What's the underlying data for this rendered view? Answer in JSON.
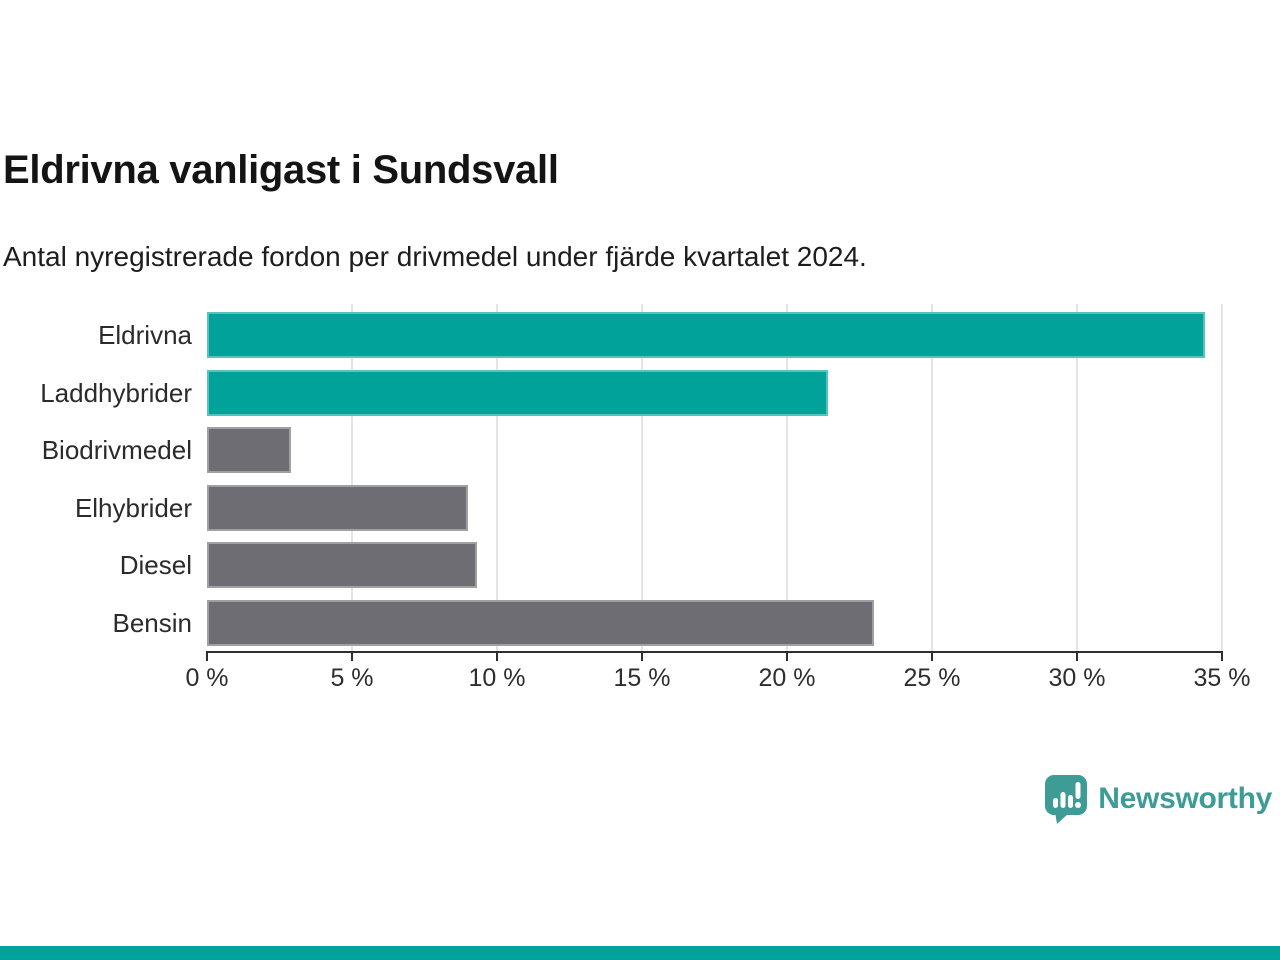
{
  "header": {
    "title": "Eldrivna vanligast i Sundsvall",
    "subtitle": "Antal nyregistrerade fordon per drivmedel under fjärde kvartalet 2024."
  },
  "chart_data": {
    "type": "bar",
    "orientation": "horizontal",
    "title": "Eldrivna vanligast i Sundsvall",
    "subtitle": "Antal nyregistrerade fordon per drivmedel under fjärde kvartalet 2024.",
    "categories": [
      "Eldrivna",
      "Laddhybrider",
      "Biodrivmedel",
      "Elhybrider",
      "Diesel",
      "Bensin"
    ],
    "values": [
      34.4,
      21.4,
      2.9,
      9.0,
      9.3,
      23.0
    ],
    "bar_colors": [
      "#00a29a",
      "#00a29a",
      "#6e6d73",
      "#6e6d73",
      "#6e6d73",
      "#6e6d73"
    ],
    "xlabel": "",
    "ylabel": "",
    "xlim": [
      0,
      35
    ],
    "x_ticks": [
      "0 %",
      "5 %",
      "10 %",
      "15 %",
      "20 %",
      "25 %",
      "30 %",
      "35 %"
    ],
    "x_tick_values": [
      0,
      5,
      10,
      15,
      20,
      25,
      30,
      35
    ],
    "grid": "vertical",
    "legend": "none",
    "colors": {
      "highlight": "#00a29a",
      "default": "#6e6d73",
      "gridline": "#e4e4e4",
      "axis": "#2e2e2e"
    }
  },
  "branding": {
    "logo_text": "Newsworthy",
    "logo_color": "#3d9c95",
    "accent_bar_color": "#00a39b"
  }
}
